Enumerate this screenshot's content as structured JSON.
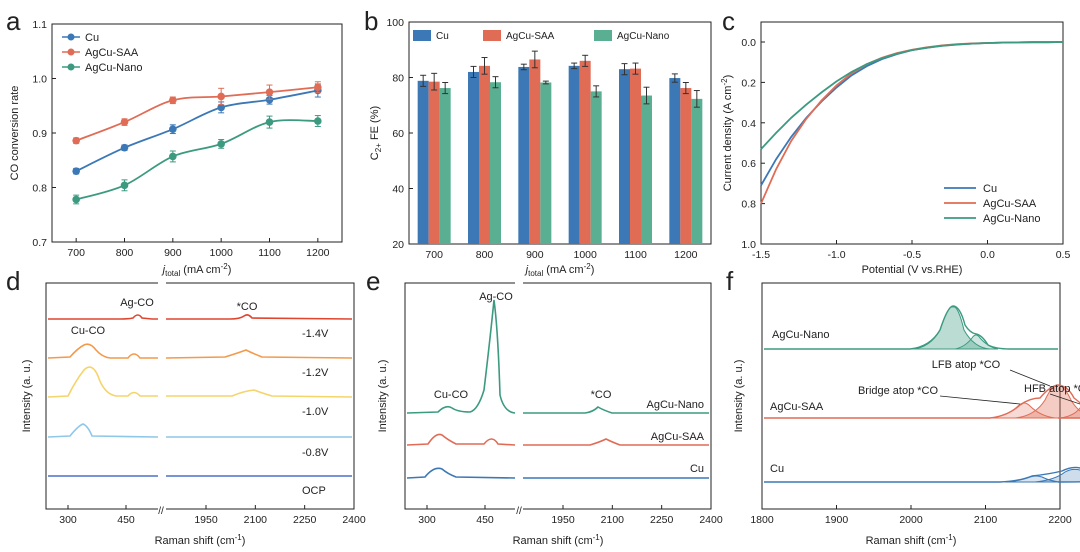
{
  "colors": {
    "cu": "#3b78b5",
    "saa": "#e06c56",
    "nano": "#3c9a80",
    "nano_bar": "#5aaf93",
    "axis": "#222222"
  },
  "panels": {
    "a": "a",
    "b": "b",
    "c": "c",
    "d": "d",
    "e": "e",
    "f": "f"
  },
  "chart_data": [
    {
      "id": "a",
      "type": "line",
      "xlabel_j": "j",
      "xlabel_sub": "total",
      "xlabel_rest": " (mA cm",
      "xlabel_sup": "-2",
      "xlabel_end": ")",
      "ylabel": "CO conversion rate",
      "x": [
        700,
        800,
        900,
        1000,
        1100,
        1200
      ],
      "xlim": [
        650,
        1250
      ],
      "ylim": [
        0.7,
        1.1
      ],
      "xticks": [
        "700",
        "800",
        "900",
        "1000",
        "1100",
        "1200"
      ],
      "yticks": [
        "0.7",
        "0.8",
        "0.9",
        "1.0",
        "1.1"
      ],
      "legend": [
        "Cu",
        "AgCu-SAA",
        "AgCu-Nano"
      ],
      "series": [
        {
          "name": "Cu",
          "values": [
            0.83,
            0.873,
            0.907,
            0.947,
            0.961,
            0.978
          ],
          "err": [
            0.005,
            0.005,
            0.008,
            0.01,
            0.008,
            0.012
          ]
        },
        {
          "name": "AgCu-SAA",
          "values": [
            0.886,
            0.92,
            0.96,
            0.967,
            0.975,
            0.984
          ],
          "err": [
            0.005,
            0.006,
            0.006,
            0.015,
            0.013,
            0.01
          ]
        },
        {
          "name": "AgCu-Nano",
          "values": [
            0.778,
            0.804,
            0.857,
            0.88,
            0.92,
            0.922
          ],
          "err": [
            0.008,
            0.01,
            0.01,
            0.008,
            0.011,
            0.01
          ]
        }
      ]
    },
    {
      "id": "b",
      "type": "bar",
      "ylabel_c": "C",
      "ylabel_sub": "2+",
      "ylabel_rest": " FE (%)",
      "xlabel_j": "j",
      "xlabel_sub": "total",
      "xlabel_rest": " (mA cm",
      "xlabel_sup": "-2",
      "xlabel_end": ")",
      "categories": [
        "700",
        "800",
        "900",
        "1000",
        "1100",
        "1200"
      ],
      "ylim": [
        20,
        100
      ],
      "yticks": [
        "20",
        "40",
        "60",
        "80",
        "100"
      ],
      "legend": [
        "Cu",
        "AgCu-SAA",
        "AgCu-Nano"
      ],
      "series": [
        {
          "name": "Cu",
          "values": [
            78.8,
            82.0,
            83.8,
            84.2,
            83.0,
            79.8
          ],
          "err": [
            2.0,
            2.0,
            1.0,
            1.0,
            2.0,
            1.5
          ]
        },
        {
          "name": "AgCu-SAA",
          "values": [
            78.5,
            84.2,
            86.5,
            86.0,
            83.2,
            76.2
          ],
          "err": [
            3.0,
            3.0,
            3.0,
            2.0,
            2.0,
            2.0
          ]
        },
        {
          "name": "AgCu-Nano",
          "values": [
            76.2,
            78.3,
            78.2,
            75.0,
            73.5,
            72.3
          ],
          "err": [
            2.0,
            2.0,
            0.5,
            2.0,
            3.0,
            3.0
          ]
        }
      ]
    },
    {
      "id": "c",
      "type": "line",
      "xlabel": "Potential (V vs.RHE)",
      "ylabel": "Current density (A cm",
      "ylabel_sup": "-2",
      "ylabel_end": ")",
      "xlim": [
        -1.5,
        0.5
      ],
      "ylim": [
        0.0,
        1.0
      ],
      "y_inverted": true,
      "xticks": [
        "-1.5",
        "-1.0",
        "-0.5",
        "0.0",
        "0.5"
      ],
      "yticks": [
        "0.0",
        "0.2",
        "0.4",
        "0.6",
        "0.8",
        "1.0"
      ],
      "legend": [
        "Cu",
        "AgCu-SAA",
        "AgCu-Nano"
      ],
      "series": [
        {
          "name": "Cu",
          "x": [
            -1.5,
            -1.4,
            -1.3,
            -1.2,
            -1.1,
            -1.0,
            -0.9,
            -0.8,
            -0.7,
            -0.6,
            -0.5,
            -0.4,
            -0.3,
            -0.2,
            -0.1,
            0.0,
            0.1,
            0.2,
            0.3,
            0.4,
            0.5
          ],
          "values": [
            0.71,
            0.58,
            0.47,
            0.375,
            0.295,
            0.225,
            0.165,
            0.12,
            0.085,
            0.06,
            0.04,
            0.028,
            0.018,
            0.012,
            0.008,
            0.005,
            0.003,
            0.002,
            0.001,
            0.001,
            0.0
          ]
        },
        {
          "name": "AgCu-SAA",
          "x": [
            -1.5,
            -1.4,
            -1.3,
            -1.2,
            -1.1,
            -1.0,
            -0.9,
            -0.8,
            -0.7,
            -0.6,
            -0.5,
            -0.4,
            -0.3,
            -0.2,
            -0.1,
            0.0,
            0.1,
            0.2,
            0.3,
            0.4,
            0.5
          ],
          "values": [
            0.8,
            0.63,
            0.49,
            0.38,
            0.29,
            0.215,
            0.155,
            0.11,
            0.078,
            0.055,
            0.038,
            0.026,
            0.017,
            0.011,
            0.007,
            0.005,
            0.003,
            0.002,
            0.001,
            0.001,
            0.0
          ]
        },
        {
          "name": "AgCu-Nano",
          "x": [
            -1.5,
            -1.4,
            -1.3,
            -1.2,
            -1.1,
            -1.0,
            -0.9,
            -0.8,
            -0.7,
            -0.6,
            -0.5,
            -0.4,
            -0.3,
            -0.2,
            -0.1,
            0.0,
            0.1,
            0.2,
            0.3,
            0.4,
            0.5
          ],
          "values": [
            0.53,
            0.45,
            0.375,
            0.31,
            0.25,
            0.195,
            0.148,
            0.11,
            0.08,
            0.058,
            0.04,
            0.028,
            0.019,
            0.013,
            0.008,
            0.005,
            0.003,
            0.002,
            0.001,
            0.001,
            0.0
          ]
        }
      ]
    },
    {
      "id": "d",
      "type": "line",
      "xlabel": "Raman shift (cm",
      "xlabel_sup": "-1",
      "xlabel_end": ")",
      "ylabel": "Intensity (a. u.)",
      "xticks_left": [
        "300",
        "450"
      ],
      "xticks_right": [
        "1950",
        "2100",
        "2250",
        "2400"
      ],
      "series_labels": [
        "-1.4V",
        "-1.2V",
        "-1.0V",
        "-0.8V",
        "OCP"
      ],
      "annotations": [
        "Ag-CO",
        "*CO",
        "Cu-CO"
      ],
      "series_colors": [
        "#e0452f",
        "#f39a4a",
        "#f5d46a",
        "#8fc7e8",
        "#4a72c9"
      ]
    },
    {
      "id": "e",
      "type": "line",
      "xlabel": "Raman shift (cm",
      "xlabel_sup": "-1",
      "xlabel_end": ")",
      "ylabel": "Intensity (a. u.)",
      "xticks_left": [
        "300",
        "450"
      ],
      "xticks_right": [
        "1950",
        "2100",
        "2250",
        "2400"
      ],
      "series_labels": [
        "AgCu-Nano",
        "AgCu-SAA",
        "Cu"
      ],
      "annotations": [
        "Ag-CO",
        "Cu-CO",
        "*CO"
      ]
    },
    {
      "id": "f",
      "type": "line",
      "xlabel": "Raman shift (cm",
      "xlabel_sup": "-1",
      "xlabel_end": ")",
      "ylabel": "Intensity (a. u.)",
      "xlim": [
        1800,
        2200
      ],
      "xticks": [
        "1800",
        "1900",
        "2000",
        "2100",
        "2200"
      ],
      "series_labels": [
        "AgCu-Nano",
        "AgCu-SAA",
        "Cu"
      ],
      "annotations": [
        "LFB atop *CO",
        "Bridge atop *CO",
        "HFB atop *CO"
      ]
    }
  ]
}
